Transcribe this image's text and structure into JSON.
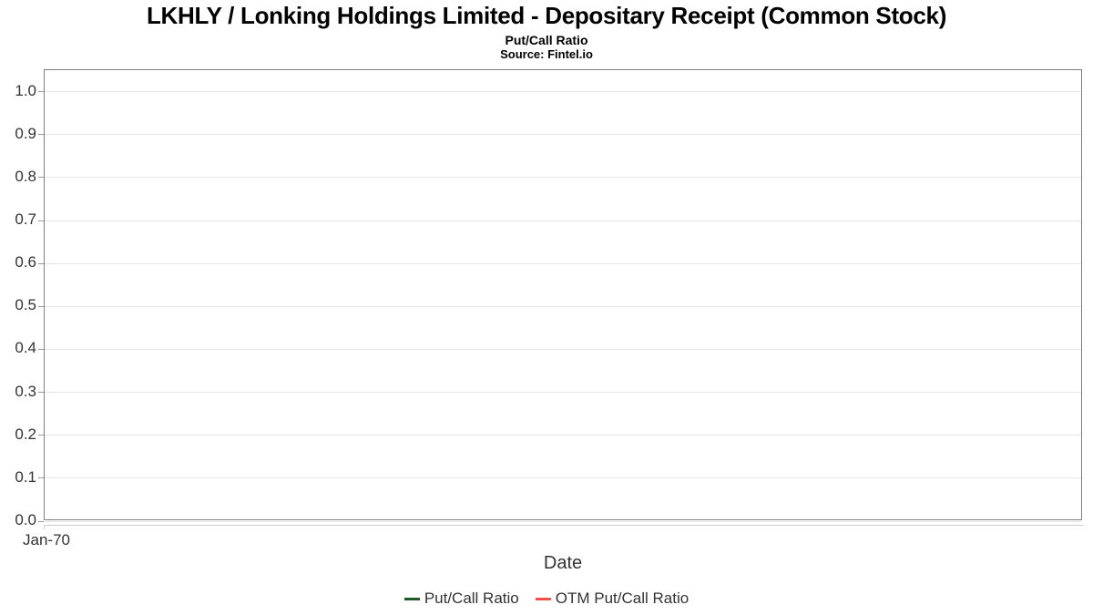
{
  "header": {
    "title": "LKHLY / Lonking Holdings Limited - Depositary Receipt (Common Stock)",
    "subtitle": "Put/Call Ratio",
    "source": "Source: Fintel.io"
  },
  "chart_data": {
    "type": "line",
    "title": "LKHLY / Lonking Holdings Limited - Depositary Receipt (Common Stock)",
    "subtitle": "Put/Call Ratio",
    "source": "Source: Fintel.io",
    "xlabel": "Date",
    "ylabel": "",
    "x_tick_labels": [
      "Jan-70"
    ],
    "yticks": [
      0.0,
      0.1,
      0.2,
      0.3,
      0.4,
      0.5,
      0.6,
      0.7,
      0.8,
      0.9,
      1.0
    ],
    "ylim": [
      0,
      1.05
    ],
    "grid": true,
    "legend_position": "bottom",
    "series": [
      {
        "name": "Put/Call Ratio",
        "color": "#205b24",
        "values": []
      },
      {
        "name": "OTM Put/Call Ratio",
        "color": "#f9504f",
        "values": []
      }
    ]
  }
}
